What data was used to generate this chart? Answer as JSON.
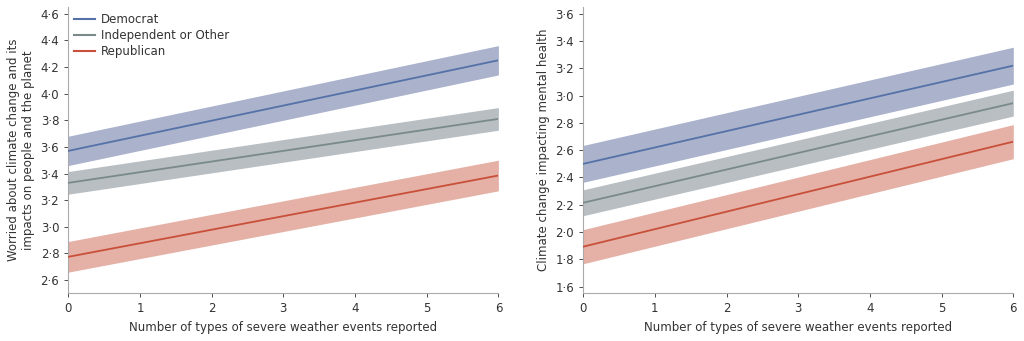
{
  "left": {
    "ylabel": "Worried about climate change and its\nimpacts on people and the planet",
    "ylim": [
      2.5,
      4.65
    ],
    "yticks": [
      2.6,
      2.8,
      3.0,
      3.2,
      3.4,
      3.6,
      3.8,
      4.0,
      4.2,
      4.4,
      4.6
    ],
    "lines": {
      "democrat": {
        "intercept": 3.57,
        "slope": 0.1133,
        "ci_lo": 0.11,
        "ci_hi": 0.11,
        "color": "#5571a7",
        "ci_color": "#aab2cc"
      },
      "independent": {
        "intercept": 3.33,
        "slope": 0.08,
        "ci_lo": 0.085,
        "ci_hi": 0.085,
        "color": "#7a8a8a",
        "ci_color": "#b8bec2"
      },
      "republican": {
        "intercept": 2.775,
        "slope": 0.1017,
        "ci_lo": 0.115,
        "ci_hi": 0.115,
        "color": "#c8503a",
        "ci_color": "#e5b0a5"
      }
    }
  },
  "right": {
    "ylabel": "Climate change impacting mental health",
    "ylim": [
      1.55,
      3.65
    ],
    "yticks": [
      1.6,
      1.8,
      2.0,
      2.2,
      2.4,
      2.6,
      2.8,
      3.0,
      3.2,
      3.4,
      3.6
    ],
    "lines": {
      "democrat": {
        "intercept": 2.5,
        "slope": 0.12,
        "ci_lo": 0.135,
        "ci_hi": 0.135,
        "color": "#5571a7",
        "ci_color": "#aab2cc"
      },
      "independent": {
        "intercept": 2.215,
        "slope": 0.1217,
        "ci_lo": 0.095,
        "ci_hi": 0.095,
        "color": "#7a8a8a",
        "ci_color": "#b8bec2"
      },
      "republican": {
        "intercept": 1.893,
        "slope": 0.1283,
        "ci_lo": 0.125,
        "ci_hi": 0.125,
        "color": "#c8503a",
        "ci_color": "#e5b0a5"
      }
    }
  },
  "xlabel": "Number of types of severe weather events reported",
  "xrange": [
    0,
    6
  ],
  "legend": {
    "democrat": "Democrat",
    "independent": "Independent or Other",
    "republican": "Republican"
  },
  "background_color": "#ffffff",
  "font_color": "#333333",
  "font_size": 8.5
}
